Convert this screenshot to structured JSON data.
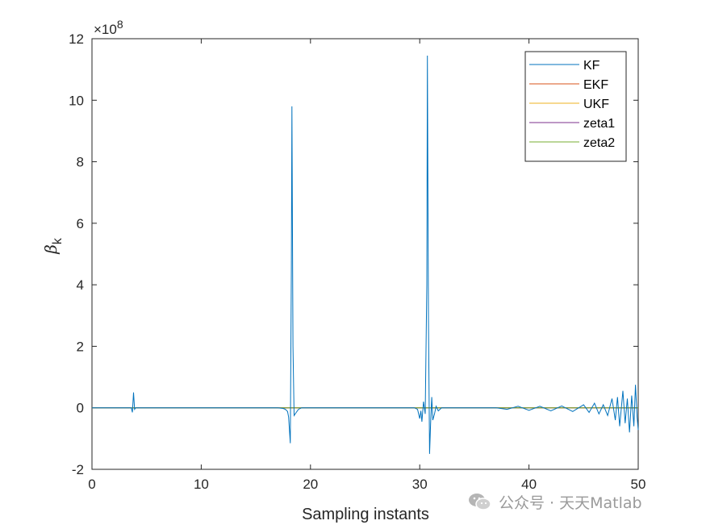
{
  "chart_data": {
    "type": "line",
    "xlabel": "Sampling instants",
    "ylabel_main": "β",
    "ylabel_sub": "k",
    "y_exponent_base": "×10",
    "y_exponent_power": "8",
    "xlim": [
      0,
      50
    ],
    "ylim": [
      -2,
      12
    ],
    "y_scale": 100000000,
    "x_ticks": [
      "0",
      "10",
      "20",
      "30",
      "40",
      "50"
    ],
    "x_tick_values": [
      0,
      10,
      20,
      30,
      40,
      50
    ],
    "y_ticks": [
      "-2",
      "0",
      "2",
      "4",
      "6",
      "8",
      "10",
      "12"
    ],
    "y_tick_values": [
      -2,
      0,
      2,
      4,
      6,
      8,
      10,
      12
    ],
    "grid": false,
    "legend_position": "top-right",
    "series": [
      {
        "name": "KF",
        "color": "#0072BD",
        "points": [
          [
            0,
            0
          ],
          [
            3.6,
            0
          ],
          [
            3.7,
            -0.15
          ],
          [
            3.8,
            0.5
          ],
          [
            3.9,
            -0.05
          ],
          [
            4.0,
            0
          ],
          [
            17.0,
            0
          ],
          [
            17.5,
            -0.02
          ],
          [
            17.7,
            -0.05
          ],
          [
            17.9,
            -0.12
          ],
          [
            18.0,
            -0.3
          ],
          [
            18.15,
            -1.15
          ],
          [
            18.25,
            4.5
          ],
          [
            18.3,
            9.8
          ],
          [
            18.4,
            2.0
          ],
          [
            18.5,
            -0.25
          ],
          [
            18.7,
            -0.15
          ],
          [
            18.9,
            -0.05
          ],
          [
            19.2,
            0
          ],
          [
            29.5,
            0
          ],
          [
            29.8,
            -0.05
          ],
          [
            30.0,
            -0.35
          ],
          [
            30.1,
            -0.1
          ],
          [
            30.2,
            -0.45
          ],
          [
            30.35,
            0.2
          ],
          [
            30.5,
            -0.2
          ],
          [
            30.65,
            4.0
          ],
          [
            30.7,
            11.45
          ],
          [
            30.8,
            3.0
          ],
          [
            30.9,
            -1.5
          ],
          [
            31.0,
            -0.5
          ],
          [
            31.1,
            0.35
          ],
          [
            31.2,
            -0.4
          ],
          [
            31.35,
            -0.2
          ],
          [
            31.5,
            0.05
          ],
          [
            31.7,
            -0.1
          ],
          [
            32.0,
            0
          ],
          [
            37.0,
            0
          ],
          [
            38.0,
            -0.05
          ],
          [
            39.0,
            0.05
          ],
          [
            40.0,
            -0.08
          ],
          [
            41.0,
            0.05
          ],
          [
            42.0,
            -0.1
          ],
          [
            43.0,
            0.06
          ],
          [
            44.0,
            -0.12
          ],
          [
            45.0,
            0.1
          ],
          [
            45.5,
            -0.15
          ],
          [
            46.0,
            0.15
          ],
          [
            46.4,
            -0.2
          ],
          [
            46.8,
            0.1
          ],
          [
            47.2,
            -0.25
          ],
          [
            47.6,
            0.3
          ],
          [
            47.9,
            -0.4
          ],
          [
            48.1,
            0.35
          ],
          [
            48.3,
            -0.6
          ],
          [
            48.6,
            0.55
          ],
          [
            48.8,
            -0.5
          ],
          [
            49.0,
            0.3
          ],
          [
            49.2,
            -0.8
          ],
          [
            49.4,
            0.4
          ],
          [
            49.6,
            -0.6
          ],
          [
            49.75,
            0.75
          ],
          [
            49.9,
            -0.3
          ],
          [
            50.0,
            -0.72
          ]
        ]
      },
      {
        "name": "EKF",
        "color": "#D95319",
        "points": [
          [
            0,
            0
          ],
          [
            50,
            0
          ]
        ]
      },
      {
        "name": "UKF",
        "color": "#EDB120",
        "points": [
          [
            0,
            0
          ],
          [
            50,
            0
          ]
        ]
      },
      {
        "name": "zeta1",
        "color": "#7E2F8E",
        "points": [
          [
            0,
            0
          ],
          [
            50,
            0
          ]
        ]
      },
      {
        "name": "zeta2",
        "color": "#77AC30",
        "points": [
          [
            0,
            0
          ],
          [
            50,
            0
          ]
        ]
      }
    ]
  },
  "watermark": {
    "icon": "wechat-icon",
    "text": "公众号 · 天天Matlab"
  }
}
